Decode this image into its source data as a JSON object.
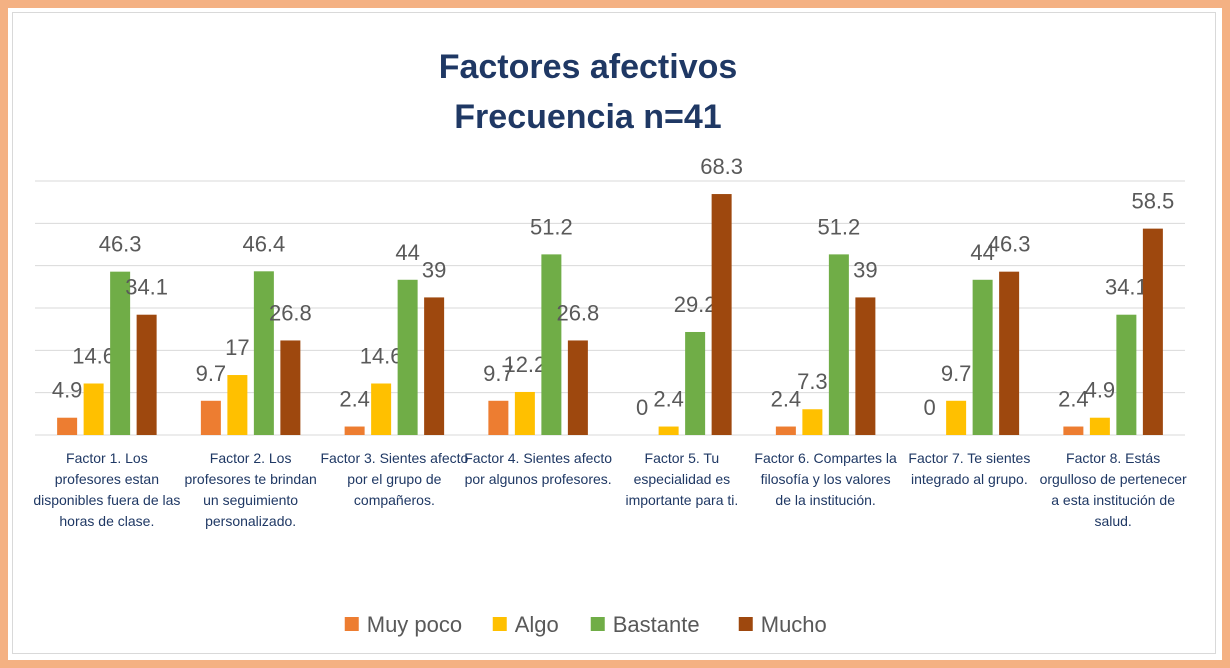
{
  "chart_data": {
    "type": "bar",
    "title": "Factores afectivos",
    "subtitle": "Frecuencia n=41",
    "categories": [
      "Factor 1. Los profesores estan disponibles fuera de las horas de clase.",
      "Factor 2. Los profesores te brindan un seguimiento personalizado.",
      "Factor 3. Sientes afecto por el grupo de compañeros.",
      "Factor 4. Sientes afecto por algunos profesores.",
      "Factor 5. Tu especialidad es importante para ti.",
      "Factor 6. Compartes la filosofía y los valores de la institución.",
      "Factor 7. Te sientes integrado al grupo.",
      "Factor 8. Estás orgulloso de pertenecer a esta institución de salud."
    ],
    "series": [
      {
        "name": "Muy poco",
        "color": "#ed7d31",
        "values": [
          4.9,
          9.7,
          2.4,
          9.7,
          0,
          2.4,
          0,
          2.4
        ]
      },
      {
        "name": "Algo",
        "color": "#ffc000",
        "values": [
          14.6,
          17,
          14.6,
          12.2,
          2.4,
          7.3,
          9.7,
          4.9
        ]
      },
      {
        "name": "Bastante",
        "color": "#70ad47",
        "values": [
          46.3,
          46.4,
          44,
          51.2,
          29.2,
          51.2,
          44,
          34.1
        ]
      },
      {
        "name": "Mucho",
        "color": "#9e480e",
        "values": [
          34.1,
          26.8,
          39,
          26.8,
          68.3,
          39,
          46.3,
          58.5
        ]
      }
    ],
    "ylim": [
      0,
      72
    ],
    "yticks": [
      0,
      12,
      24,
      36,
      48,
      60,
      72
    ],
    "grid": true,
    "legend": "bottom"
  }
}
